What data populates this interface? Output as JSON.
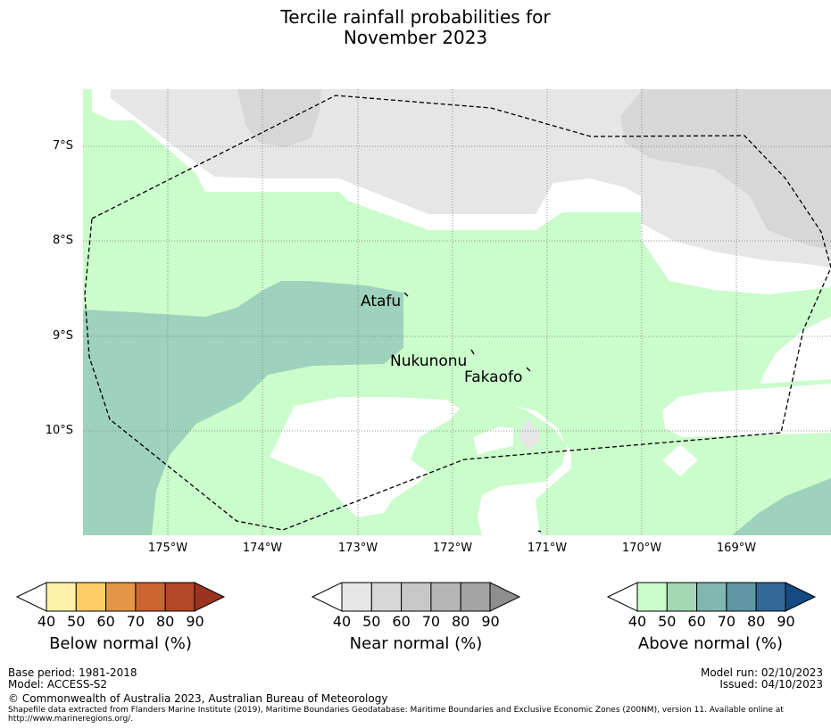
{
  "title": {
    "line1": "Tercile rainfall probabilities for",
    "line2": "November 2023"
  },
  "map": {
    "lat_labels": [
      "7°S",
      "8°S",
      "9°S",
      "10°S"
    ],
    "lon_labels": [
      "175°W",
      "174°W",
      "173°W",
      "172°W",
      "171°W",
      "170°W",
      "169°W"
    ],
    "places": [
      "Atafu",
      "Nukunonu",
      "Fakaofo"
    ],
    "colors": {
      "near_normal_40": "#e6e6e6",
      "near_normal_50": "#d7d7d7",
      "above_normal_40": "#cbfccb",
      "above_normal_50": "#9ed2bd",
      "no_data": "#ffffff"
    }
  },
  "colorbars": [
    {
      "title": "Below normal (%)",
      "ticks": [
        "40",
        "50",
        "60",
        "70",
        "80",
        "90"
      ],
      "colors": [
        "#fff1a8",
        "#fecc66",
        "#e39648",
        "#cd6533",
        "#b24826",
        "#9a3420"
      ]
    },
    {
      "title": "Near normal (%)",
      "ticks": [
        "40",
        "50",
        "60",
        "70",
        "80",
        "90"
      ],
      "colors": [
        "#e6e6e6",
        "#d7d7d7",
        "#c7c7c7",
        "#b5b5b5",
        "#a3a3a3",
        "#8e8e8e"
      ]
    },
    {
      "title": "Above normal (%)",
      "ticks": [
        "40",
        "50",
        "60",
        "70",
        "80",
        "90"
      ],
      "colors": [
        "#cbfccb",
        "#a5d6b5",
        "#82b6b1",
        "#5f95a3",
        "#336898",
        "#144a82"
      ]
    }
  ],
  "footer": {
    "base_period": "Base period: 1981-2018",
    "model": "Model: ACCESS-S2",
    "model_run": "Model run: 02/10/2023",
    "issued": "Issued: 04/10/2023",
    "copyright": "© Commonwealth of Australia 2023, Australian Bureau of Meteorology",
    "shapefile_line1": "Shapefile data extracted from Flanders Marine Institute (2019), Maritime Boundaries Geodatabase: Maritime Boundaries and Exclusive Economic Zones (200NM), version 11. Available online at",
    "shapefile_line2": "http://www.marineregions.org/."
  }
}
